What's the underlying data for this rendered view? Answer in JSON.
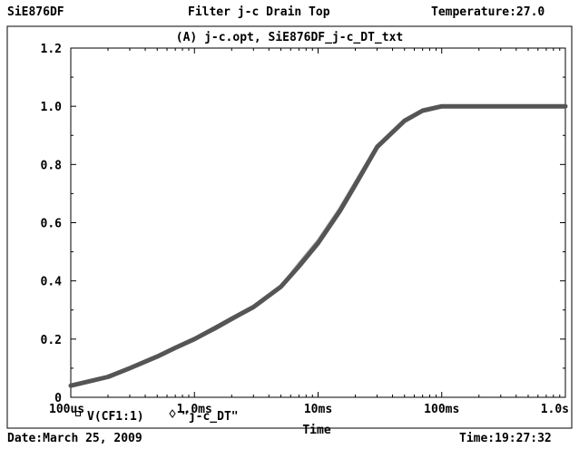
{
  "header": {
    "left": "SiE876DF",
    "center": "Filter j-c Drain Top",
    "right": "Temperature:27.0"
  },
  "footer": {
    "date": "Date:March 25, 2009",
    "time": "Time:19:27:32"
  },
  "chart_data": {
    "type": "line",
    "title": "(A) j-c.opt, SiE876DF_j-c_DT_txt",
    "xlabel": "Time",
    "ylabel": "",
    "x_scale": "log",
    "xlim": [
      0.0001,
      1.0
    ],
    "ylim": [
      0,
      1.2
    ],
    "x_ticks": [
      {
        "value": 0.0001,
        "label": "100us"
      },
      {
        "value": 0.001,
        "label": "1.0ms"
      },
      {
        "value": 0.01,
        "label": "10ms"
      },
      {
        "value": 0.1,
        "label": "100ms"
      },
      {
        "value": 1.0,
        "label": "1.0s"
      }
    ],
    "y_ticks": [
      {
        "value": 0,
        "label": "0"
      },
      {
        "value": 0.2,
        "label": "0.2"
      },
      {
        "value": 0.4,
        "label": "0.4"
      },
      {
        "value": 0.6,
        "label": "0.6"
      },
      {
        "value": 0.8,
        "label": "0.8"
      },
      {
        "value": 1.0,
        "label": "1.0"
      },
      {
        "value": 1.2,
        "label": "1.2"
      }
    ],
    "grid": false,
    "legend_position": "bottom-left",
    "x": [
      0.0001,
      0.0002,
      0.0003,
      0.0005,
      0.0007,
      0.001,
      0.0015,
      0.002,
      0.003,
      0.005,
      0.007,
      0.01,
      0.015,
      0.02,
      0.03,
      0.05,
      0.07,
      0.1,
      0.15,
      0.2,
      0.3,
      0.5,
      1.0
    ],
    "series": [
      {
        "name": "V(CF1:1)",
        "marker": "square",
        "color": "#555555",
        "values": [
          0.04,
          0.07,
          0.1,
          0.14,
          0.17,
          0.2,
          0.24,
          0.27,
          0.31,
          0.38,
          0.45,
          0.53,
          0.64,
          0.73,
          0.86,
          0.95,
          0.985,
          1.0,
          1.0,
          1.0,
          1.0,
          1.0,
          1.0
        ]
      },
      {
        "name": "\"j-c_DT\"",
        "marker": "diamond",
        "color": "#aaaaaa",
        "values": [
          0.04,
          0.07,
          0.1,
          0.14,
          0.17,
          0.2,
          0.235,
          0.265,
          0.31,
          0.38,
          0.46,
          0.54,
          0.65,
          0.74,
          0.865,
          0.952,
          0.985,
          1.0,
          1.0,
          1.0,
          1.0,
          1.0,
          1.0
        ]
      }
    ]
  }
}
